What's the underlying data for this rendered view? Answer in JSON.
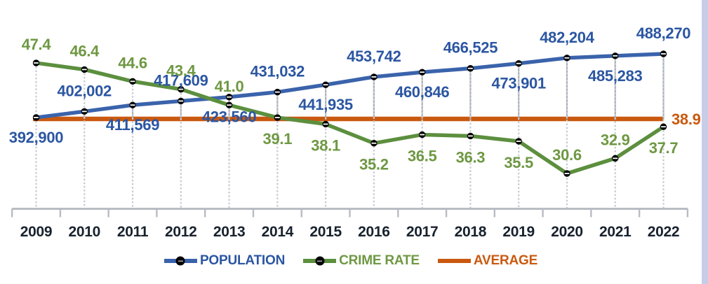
{
  "chart_data": {
    "type": "line",
    "categories": [
      "2009",
      "2010",
      "2011",
      "2012",
      "2013",
      "2014",
      "2015",
      "2016",
      "2017",
      "2018",
      "2019",
      "2020",
      "2021",
      "2022"
    ],
    "series": [
      {
        "id": "population",
        "name": "POPULATION",
        "values": [
          392900,
          402002,
          411569,
          417609,
          423560,
          431032,
          441935,
          453742,
          460846,
          466525,
          473901,
          482204,
          485283,
          488270
        ],
        "labels": [
          "392,900",
          "402,002",
          "411,569",
          "417,609",
          "423,560",
          "431,032",
          "441,935",
          "453,742",
          "460,846",
          "466,525",
          "473,901",
          "482,204",
          "485,283",
          "488,270"
        ],
        "label_side": [
          "below",
          "above",
          "below",
          "above",
          "below",
          "above",
          "below",
          "above",
          "below",
          "above",
          "below",
          "above",
          "below",
          "above"
        ],
        "line_color": "#3A63AB",
        "label_color": "#2B56A2",
        "marker": "black-circle-white-slit"
      },
      {
        "id": "crime-rate",
        "name": "CRIME RATE",
        "values": [
          47.4,
          46.4,
          44.6,
          43.4,
          41.0,
          39.1,
          38.1,
          35.2,
          36.5,
          36.3,
          35.5,
          30.6,
          32.9,
          37.7
        ],
        "labels": [
          "47.4",
          "46.4",
          "44.6",
          "43.4",
          "41.0",
          "39.1",
          "38.1",
          "35.2",
          "36.5",
          "36.3",
          "35.5",
          "30.6",
          "32.9",
          "37.7"
        ],
        "label_side": [
          "above",
          "above",
          "above",
          "above",
          "above",
          "below",
          "below",
          "below",
          "below",
          "below",
          "below",
          "above",
          "above",
          "below"
        ],
        "line_color": "#5C8F3E",
        "label_color": "#6E9843",
        "marker": "black-circle-white-slit"
      },
      {
        "id": "average",
        "name": "AVERAGE",
        "type": "constant",
        "value": 38.9,
        "label": "38.9",
        "line_color": "#C9590F",
        "label_color": "#C9590F"
      }
    ],
    "axes": {
      "x_tick_style": "between-categories",
      "x_axis_color": "#B8BCC3",
      "year_label_color": "#18222E",
      "y_axis_visible": false
    },
    "layout": {
      "legend_position": "bottom",
      "gridlines": false,
      "drop_lines": "dashed",
      "drop_line_color": "#C7CBD2",
      "updown_bar_color": "#A8ACB4",
      "marker_color": "#000000"
    }
  },
  "legend": {
    "items": [
      {
        "label": "POPULATION",
        "swatch_color": "#3A63AB",
        "text_color": "#2B56A2",
        "has_marker": true
      },
      {
        "label": "CRIME RATE",
        "swatch_color": "#5C8F3E",
        "text_color": "#6E9843",
        "has_marker": true
      },
      {
        "label": "AVERAGE",
        "swatch_color": "#C9590F",
        "text_color": "#C9590F",
        "has_marker": false
      }
    ]
  },
  "page": {
    "background": "#FFFFFF",
    "right_edge_strip_color": "#C7CCE8"
  }
}
